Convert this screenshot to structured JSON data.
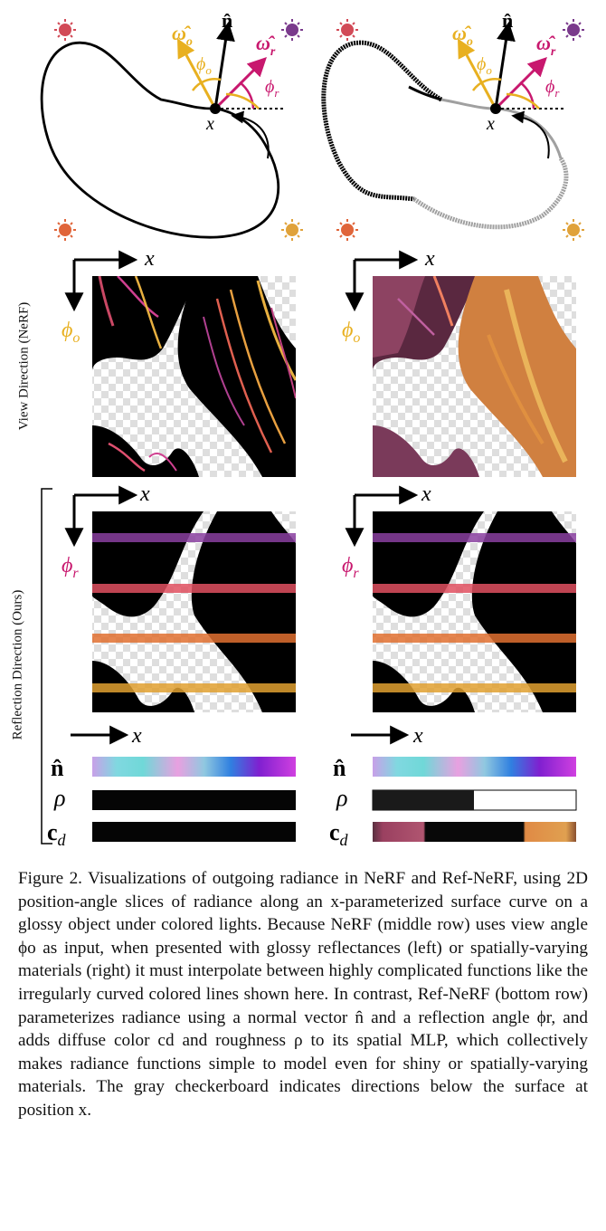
{
  "figure": {
    "row_labels": {
      "view": "View Direction (NeRF)",
      "reflection": "Reflection Direction (Ours)"
    },
    "symbols": {
      "normal": "n̂",
      "omega_o": "ω̂",
      "omega_o_sub": "o",
      "omega_r": "ω̂",
      "omega_r_sub": "r",
      "phi_o": "ϕ",
      "phi_o_sub": "o",
      "phi_r": "ϕ",
      "phi_r_sub": "r",
      "position": "x",
      "rho": "ρ",
      "cd": "c",
      "cd_sub": "d"
    },
    "colors": {
      "omega_o": "#e8b020",
      "omega_r": "#c8186e",
      "light_top_left": "#d24a57",
      "light_top_right": "#7a3a8c",
      "light_bottom_left": "#e0653a",
      "light_bottom_right": "#e0a23a",
      "gray_curve": "#a0a0a0"
    }
  },
  "caption": {
    "text": "Figure 2. Visualizations of outgoing radiance in NeRF and Ref-NeRF, using 2D position-angle slices of radiance along an x-parameterized surface curve on a glossy object under colored lights. Because NeRF (middle row) uses view angle ϕo as input, when presented with glossy reflectances (left) or spatially-varying materials (right) it must interpolate between highly complicated functions like the irregularly curved colored lines shown here. In contrast, Ref-NeRF (bottom row) parameterizes radiance using a normal vector n̂ and a reflection angle ϕr, and adds diffuse color cd and roughness ρ to its spatial MLP, which collectively makes radiance functions simple to model even for shiny or spatially-varying materials. The gray checkerboard indicates directions below the surface at position x."
  }
}
